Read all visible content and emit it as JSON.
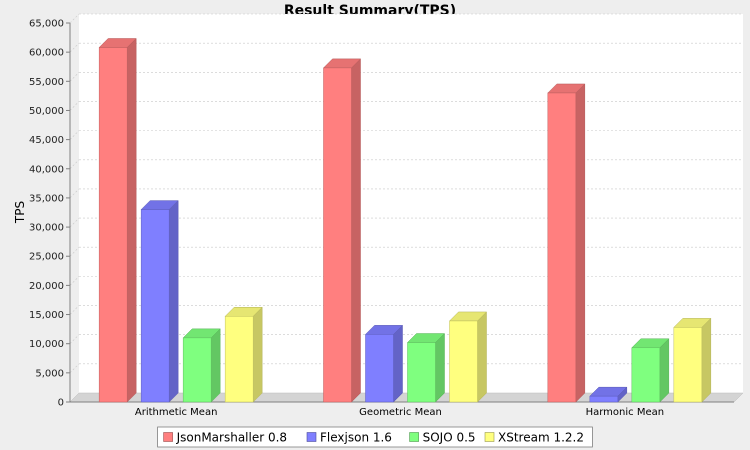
{
  "chart_data": {
    "type": "bar",
    "title": "Result Summary(TPS)",
    "xlabel": "",
    "ylabel": "TPS",
    "ylim": [
      0,
      65000
    ],
    "y_ticks": [
      0,
      5000,
      10000,
      15000,
      20000,
      25000,
      30000,
      35000,
      40000,
      45000,
      50000,
      55000,
      60000,
      65000
    ],
    "y_tick_labels": [
      "0",
      "5,000",
      "10,000",
      "15,000",
      "20,000",
      "25,000",
      "30,000",
      "35,000",
      "40,000",
      "45,000",
      "50,000",
      "55,000",
      "60,000",
      "65,000"
    ],
    "grid": true,
    "legend_position": "bottom",
    "categories": [
      "Arithmetic Mean",
      "Geometric Mean",
      "Harmonic Mean"
    ],
    "series": [
      {
        "name": "JsonMarshaller 0.8",
        "color": "#ff7f7f",
        "values": [
          60800,
          57300,
          53000
        ]
      },
      {
        "name": "Flexjson 1.6",
        "color": "#7f7fff",
        "values": [
          33000,
          11600,
          1000
        ]
      },
      {
        "name": "SOJO 0.5",
        "color": "#7fff7f",
        "values": [
          11000,
          10200,
          9300
        ]
      },
      {
        "name": "XStream 1.2.2",
        "color": "#ffff7f",
        "values": [
          14700,
          13900,
          12800
        ]
      }
    ]
  }
}
